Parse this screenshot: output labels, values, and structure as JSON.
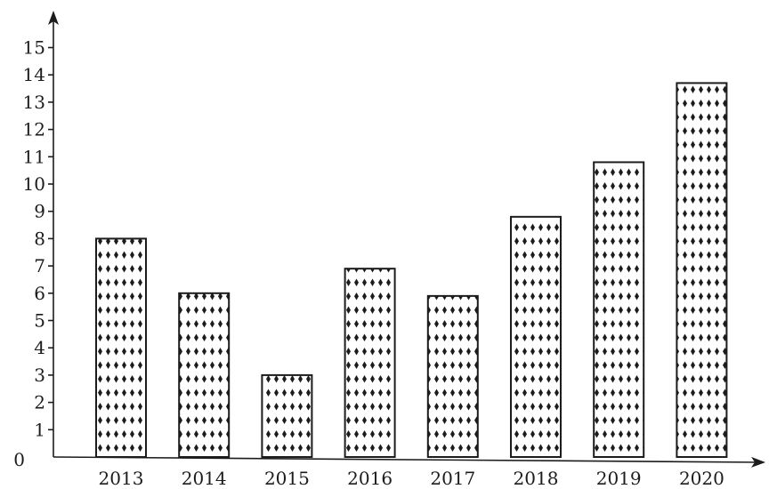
{
  "chart_data": {
    "type": "bar",
    "title": "",
    "xlabel": "",
    "ylabel": "",
    "categories": [
      "2013",
      "2014",
      "2015",
      "2016",
      "2017",
      "2018",
      "2019",
      "2020"
    ],
    "values": [
      8,
      6,
      3,
      6.9,
      5.9,
      8.8,
      10.8,
      13.7
    ],
    "ylim": [
      0,
      15
    ],
    "yticks": [
      "0",
      "1",
      "2",
      "3",
      "4",
      "5",
      "6",
      "7",
      "8",
      "9",
      "10",
      "11",
      "12",
      "13",
      "14",
      "15"
    ],
    "grid": false,
    "legend": "none",
    "bar_fill": "diamond dot pattern",
    "colors": {
      "ink": "#1c1c1c",
      "background": "#ffffff"
    }
  }
}
